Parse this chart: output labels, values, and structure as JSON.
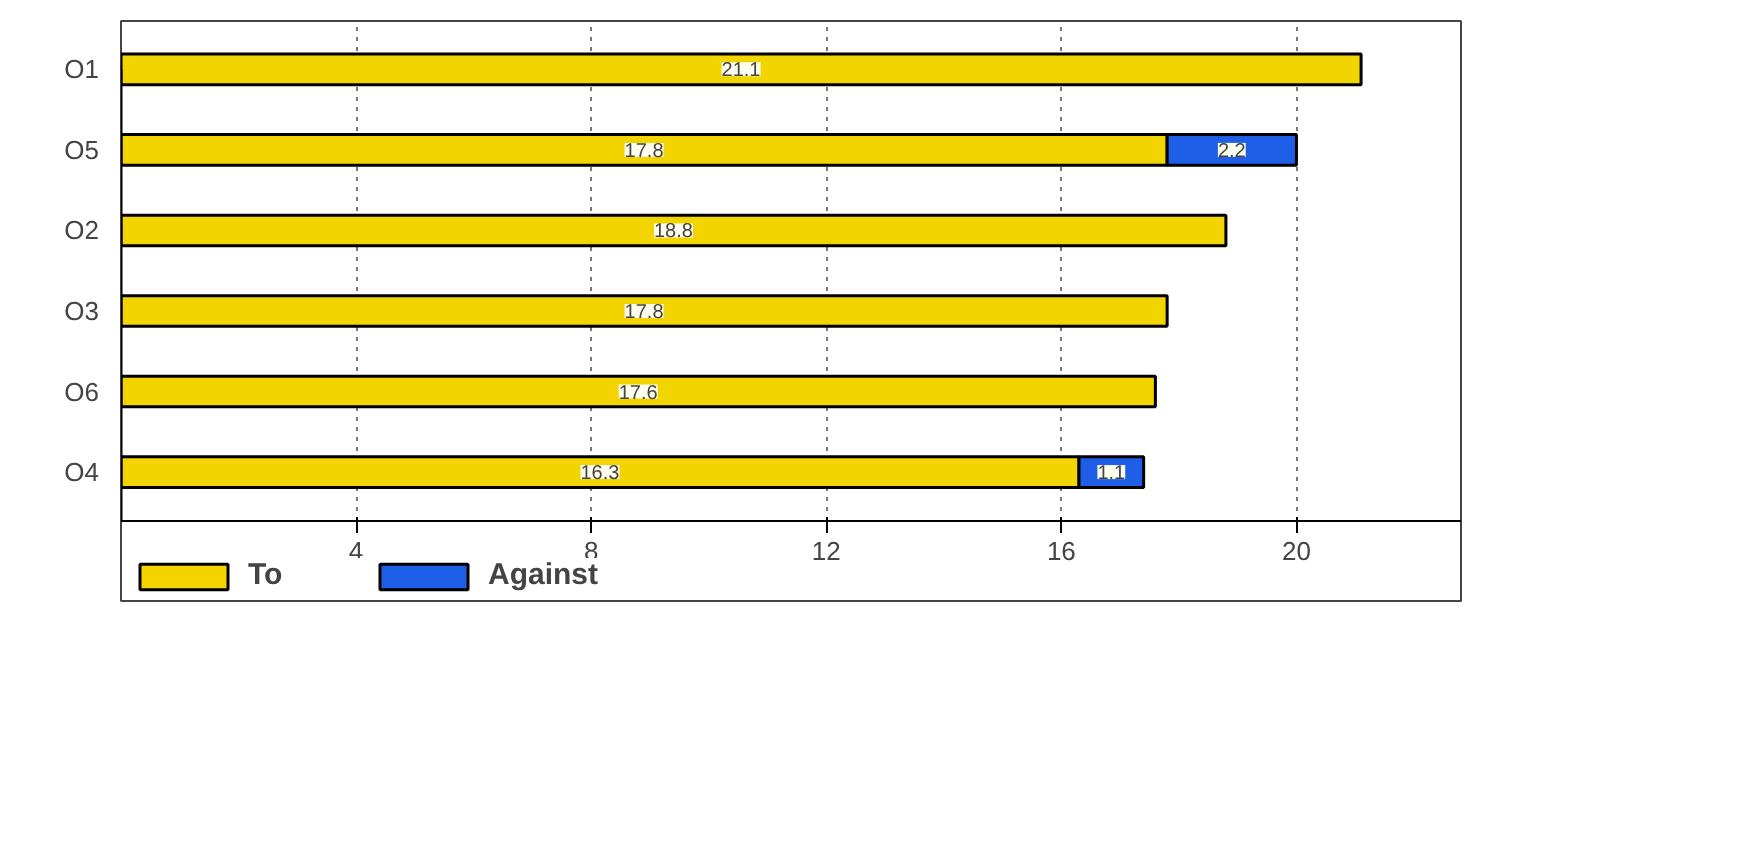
{
  "chart_data": {
    "type": "bar",
    "orientation": "horizontal",
    "stacked": true,
    "categories": [
      "O1",
      "O5",
      "O2",
      "O3",
      "O6",
      "O4"
    ],
    "series": [
      {
        "name": "To",
        "color": "#f2d500",
        "values": [
          21.1,
          17.8,
          18.8,
          17.8,
          17.6,
          16.3
        ]
      },
      {
        "name": "Against",
        "color": "#1f5fe8",
        "values": [
          null,
          2.2,
          null,
          null,
          null,
          1.1
        ]
      }
    ],
    "xlim": [
      0,
      22.8
    ],
    "xticks": [
      4,
      8,
      12,
      16,
      20
    ],
    "grid": "x",
    "legend": "bottom left",
    "data_labels": true
  }
}
